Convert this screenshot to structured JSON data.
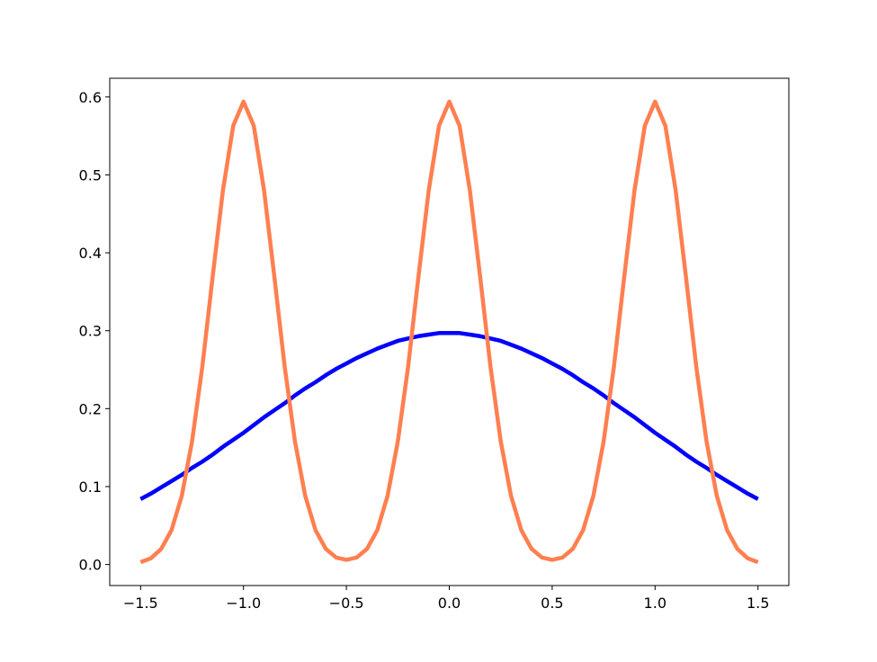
{
  "chart_data": {
    "type": "line",
    "x": [
      -1.5,
      -1.45,
      -1.4,
      -1.35,
      -1.3,
      -1.25,
      -1.2,
      -1.15,
      -1.1,
      -1.05,
      -1,
      -0.95,
      -0.9,
      -0.85,
      -0.8,
      -0.75,
      -0.7,
      -0.65,
      -0.6,
      -0.55,
      -0.5,
      -0.45,
      -0.4,
      -0.35,
      -0.3,
      -0.25,
      -0.2,
      -0.15,
      -0.1,
      -0.05,
      0,
      0.05,
      0.1,
      0.15,
      0.2,
      0.25,
      0.3,
      0.35,
      0.4,
      0.45,
      0.5,
      0.55,
      0.6,
      0.65,
      0.7,
      0.75,
      0.8,
      0.85,
      0.9,
      0.95,
      1,
      1.05,
      1.1,
      1.15,
      1.2,
      1.25,
      1.3,
      1.35,
      1.4,
      1.45,
      1.5
    ],
    "series": [
      {
        "color": "#0000ff",
        "values": [
          0.084,
          0.091,
          0.099,
          0.107,
          0.115,
          0.124,
          0.132,
          0.141,
          0.151,
          0.16,
          0.169,
          0.179,
          0.189,
          0.198,
          0.207,
          0.217,
          0.226,
          0.234,
          0.243,
          0.251,
          0.258,
          0.265,
          0.271,
          0.277,
          0.282,
          0.287,
          0.29,
          0.293,
          0.295,
          0.297,
          0.297,
          0.297,
          0.295,
          0.293,
          0.29,
          0.287,
          0.282,
          0.277,
          0.271,
          0.265,
          0.258,
          0.251,
          0.243,
          0.234,
          0.226,
          0.217,
          0.207,
          0.198,
          0.189,
          0.179,
          0.169,
          0.16,
          0.151,
          0.141,
          0.132,
          0.124,
          0.115,
          0.107,
          0.099,
          0.091,
          0.084
        ]
      },
      {
        "color": "#ff7f50",
        "values": [
          0.003,
          0.008,
          0.02,
          0.044,
          0.088,
          0.158,
          0.254,
          0.369,
          0.48,
          0.563,
          0.594,
          0.563,
          0.48,
          0.369,
          0.254,
          0.158,
          0.088,
          0.044,
          0.02,
          0.009,
          0.006,
          0.009,
          0.02,
          0.044,
          0.088,
          0.158,
          0.254,
          0.369,
          0.48,
          0.563,
          0.594,
          0.563,
          0.48,
          0.369,
          0.254,
          0.158,
          0.088,
          0.044,
          0.02,
          0.009,
          0.006,
          0.009,
          0.02,
          0.044,
          0.088,
          0.158,
          0.254,
          0.369,
          0.48,
          0.563,
          0.594,
          0.563,
          0.48,
          0.369,
          0.254,
          0.158,
          0.088,
          0.044,
          0.02,
          0.008,
          0.003
        ]
      }
    ],
    "xlim": [
      -1.65,
      1.65
    ],
    "ylim": [
      -0.027,
      0.624
    ],
    "xticks": [
      {
        "value": -1.5,
        "label": "−1.5"
      },
      {
        "value": -1,
        "label": "−1.0"
      },
      {
        "value": -0.5,
        "label": "−0.5"
      },
      {
        "value": 0,
        "label": "0.0"
      },
      0.5,
      {
        "value": 1,
        "label": "1.0"
      },
      1.5
    ],
    "yticks": [
      {
        "value": 0,
        "label": "0.0"
      },
      0.1,
      0.2,
      0.3,
      0.4,
      0.5,
      0.6
    ],
    "grid": false
  }
}
